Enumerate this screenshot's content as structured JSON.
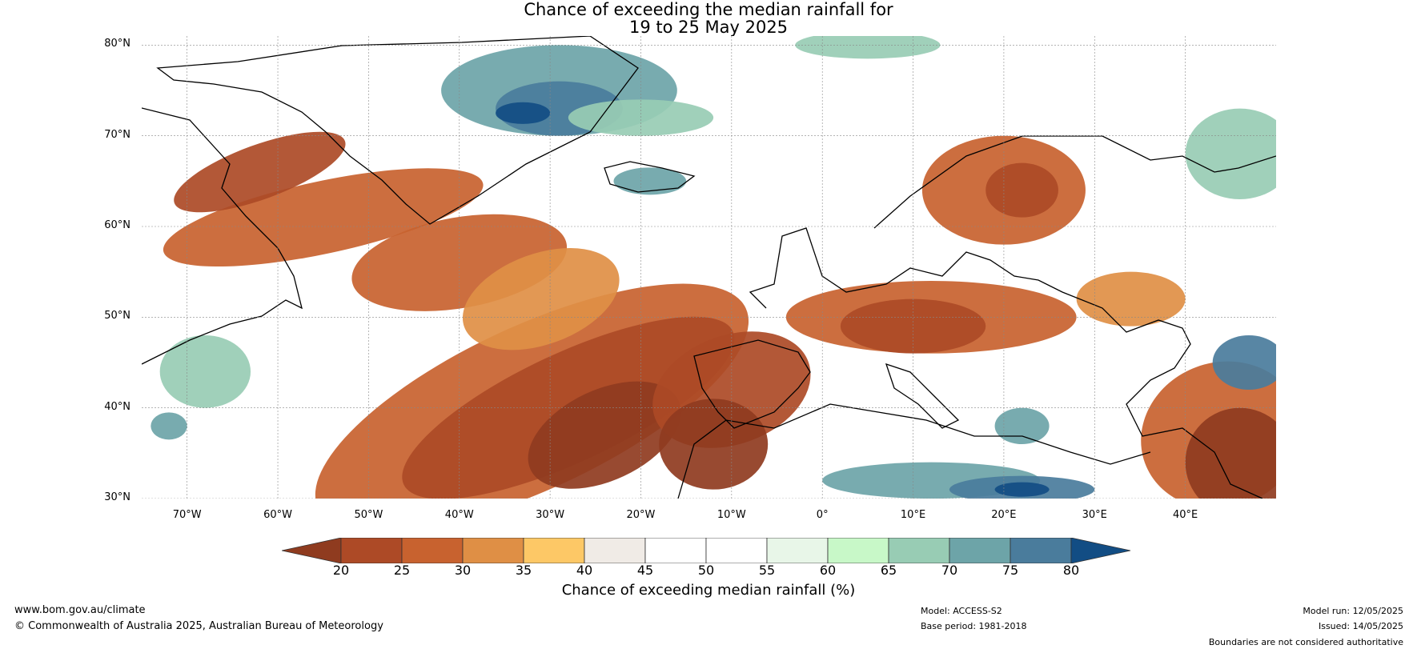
{
  "title_line1": "Chance of exceeding the median rainfall for",
  "title_line2": "19 to 25 May 2025",
  "lat_labels": [
    "80°N",
    "70°N",
    "60°N",
    "50°N",
    "40°N",
    "30°N"
  ],
  "lon_labels": [
    "70°W",
    "60°W",
    "50°W",
    "40°W",
    "30°W",
    "20°W",
    "10°W",
    "0°",
    "10°E",
    "20°E",
    "30°E",
    "40°E"
  ],
  "colorbar": {
    "ticks": [
      "20",
      "25",
      "30",
      "35",
      "40",
      "45",
      "50",
      "55",
      "60",
      "65",
      "70",
      "75",
      "80"
    ],
    "colors": [
      "#8f3b1f",
      "#ad4a26",
      "#c8622f",
      "#df8f45",
      "#fdc866",
      "#f0ebe6",
      "#ffffff",
      "#ffffff",
      "#e8f6e8",
      "#c8f8c8",
      "#98ccb4",
      "#6da4a8",
      "#4a7c9c",
      "#124d84"
    ],
    "label": "Chance of exceeding median rainfall (%)"
  },
  "map": {
    "lon_range": [
      -75,
      50
    ],
    "lat_range": [
      30,
      81
    ],
    "regions": [
      {
        "cls": "dry3",
        "lon": -32,
        "lat": 40,
        "rx": 26,
        "ry": 9,
        "rot": -25
      },
      {
        "cls": "dry2",
        "lon": -28,
        "lat": 40,
        "rx": 20,
        "ry": 6,
        "rot": -25
      },
      {
        "cls": "dry1",
        "lon": -24,
        "lat": 37,
        "rx": 9,
        "ry": 5,
        "rot": -25
      },
      {
        "cls": "dry2",
        "lon": -10,
        "lat": 42,
        "rx": 9,
        "ry": 6,
        "rot": -20
      },
      {
        "cls": "dry1",
        "lon": -12,
        "lat": 36,
        "rx": 6,
        "ry": 5,
        "rot": 0
      },
      {
        "cls": "dry3",
        "lon": -55,
        "lat": 61,
        "rx": 18,
        "ry": 4,
        "rot": -12
      },
      {
        "cls": "dry2",
        "lon": -62,
        "lat": 66,
        "rx": 10,
        "ry": 3,
        "rot": -20
      },
      {
        "cls": "dry3",
        "lon": -40,
        "lat": 56,
        "rx": 12,
        "ry": 5,
        "rot": -10
      },
      {
        "cls": "dry4",
        "lon": -31,
        "lat": 52,
        "rx": 9,
        "ry": 5,
        "rot": -20
      },
      {
        "cls": "dry3",
        "lon": 12,
        "lat": 50,
        "rx": 16,
        "ry": 4,
        "rot": 0
      },
      {
        "cls": "dry2",
        "lon": 10,
        "lat": 49,
        "rx": 8,
        "ry": 3,
        "rot": 0
      },
      {
        "cls": "dry3",
        "lon": 20,
        "lat": 64,
        "rx": 9,
        "ry": 6,
        "rot": 0
      },
      {
        "cls": "dry2",
        "lon": 22,
        "lat": 64,
        "rx": 4,
        "ry": 3,
        "rot": 0
      },
      {
        "cls": "dry4",
        "lon": 34,
        "lat": 52,
        "rx": 6,
        "ry": 3,
        "rot": 0
      },
      {
        "cls": "dry3",
        "lon": 44,
        "lat": 37,
        "rx": 9,
        "ry": 8,
        "rot": -20
      },
      {
        "cls": "dry1",
        "lon": 46,
        "lat": 34,
        "rx": 6,
        "ry": 6,
        "rot": 0
      },
      {
        "cls": "wet3",
        "lon": -29,
        "lat": 75,
        "rx": 13,
        "ry": 5,
        "rot": 0
      },
      {
        "cls": "wet4",
        "lon": -29,
        "lat": 73,
        "rx": 7,
        "ry": 3,
        "rot": 0
      },
      {
        "cls": "wet5",
        "lon": -33,
        "lat": 72.5,
        "rx": 3,
        "ry": 1.2,
        "rot": 0
      },
      {
        "cls": "wet2",
        "lon": -20,
        "lat": 72,
        "rx": 8,
        "ry": 2,
        "rot": 0
      },
      {
        "cls": "wet3",
        "lon": -19,
        "lat": 65,
        "rx": 4,
        "ry": 1.5,
        "rot": 0
      },
      {
        "cls": "wet3",
        "lon": 12,
        "lat": 32,
        "rx": 12,
        "ry": 2,
        "rot": 0
      },
      {
        "cls": "wet4",
        "lon": 22,
        "lat": 31,
        "rx": 8,
        "ry": 1.5,
        "rot": 0
      },
      {
        "cls": "wet5",
        "lon": 22,
        "lat": 31,
        "rx": 3,
        "ry": 0.8,
        "rot": 0
      },
      {
        "cls": "wet4",
        "lon": 47,
        "lat": 45,
        "rx": 4,
        "ry": 3,
        "rot": 0
      },
      {
        "cls": "wet3",
        "lon": 22,
        "lat": 38,
        "rx": 3,
        "ry": 2,
        "rot": 0
      },
      {
        "cls": "wet2",
        "lon": -68,
        "lat": 44,
        "rx": 5,
        "ry": 4,
        "rot": 0
      },
      {
        "cls": "wet3",
        "lon": -72,
        "lat": 38,
        "rx": 2,
        "ry": 1.5,
        "rot": 0
      },
      {
        "cls": "wet2",
        "lon": 46,
        "lat": 68,
        "rx": 6,
        "ry": 5,
        "rot": 0
      },
      {
        "cls": "wet2",
        "lon": 5,
        "lat": 80,
        "rx": 8,
        "ry": 1.5,
        "rot": 0
      }
    ]
  },
  "footer": {
    "website": "www.bom.gov.au/climate",
    "copyright": "© Commonwealth of Australia 2025, Australian Bureau of Meteorology",
    "model": "Model: ACCESS-S2",
    "base_period": "Base period: 1981-2018",
    "model_run": "Model run: 12/05/2025",
    "issued": "Issued: 14/05/2025",
    "boundaries": "Boundaries are not considered authoritative"
  }
}
